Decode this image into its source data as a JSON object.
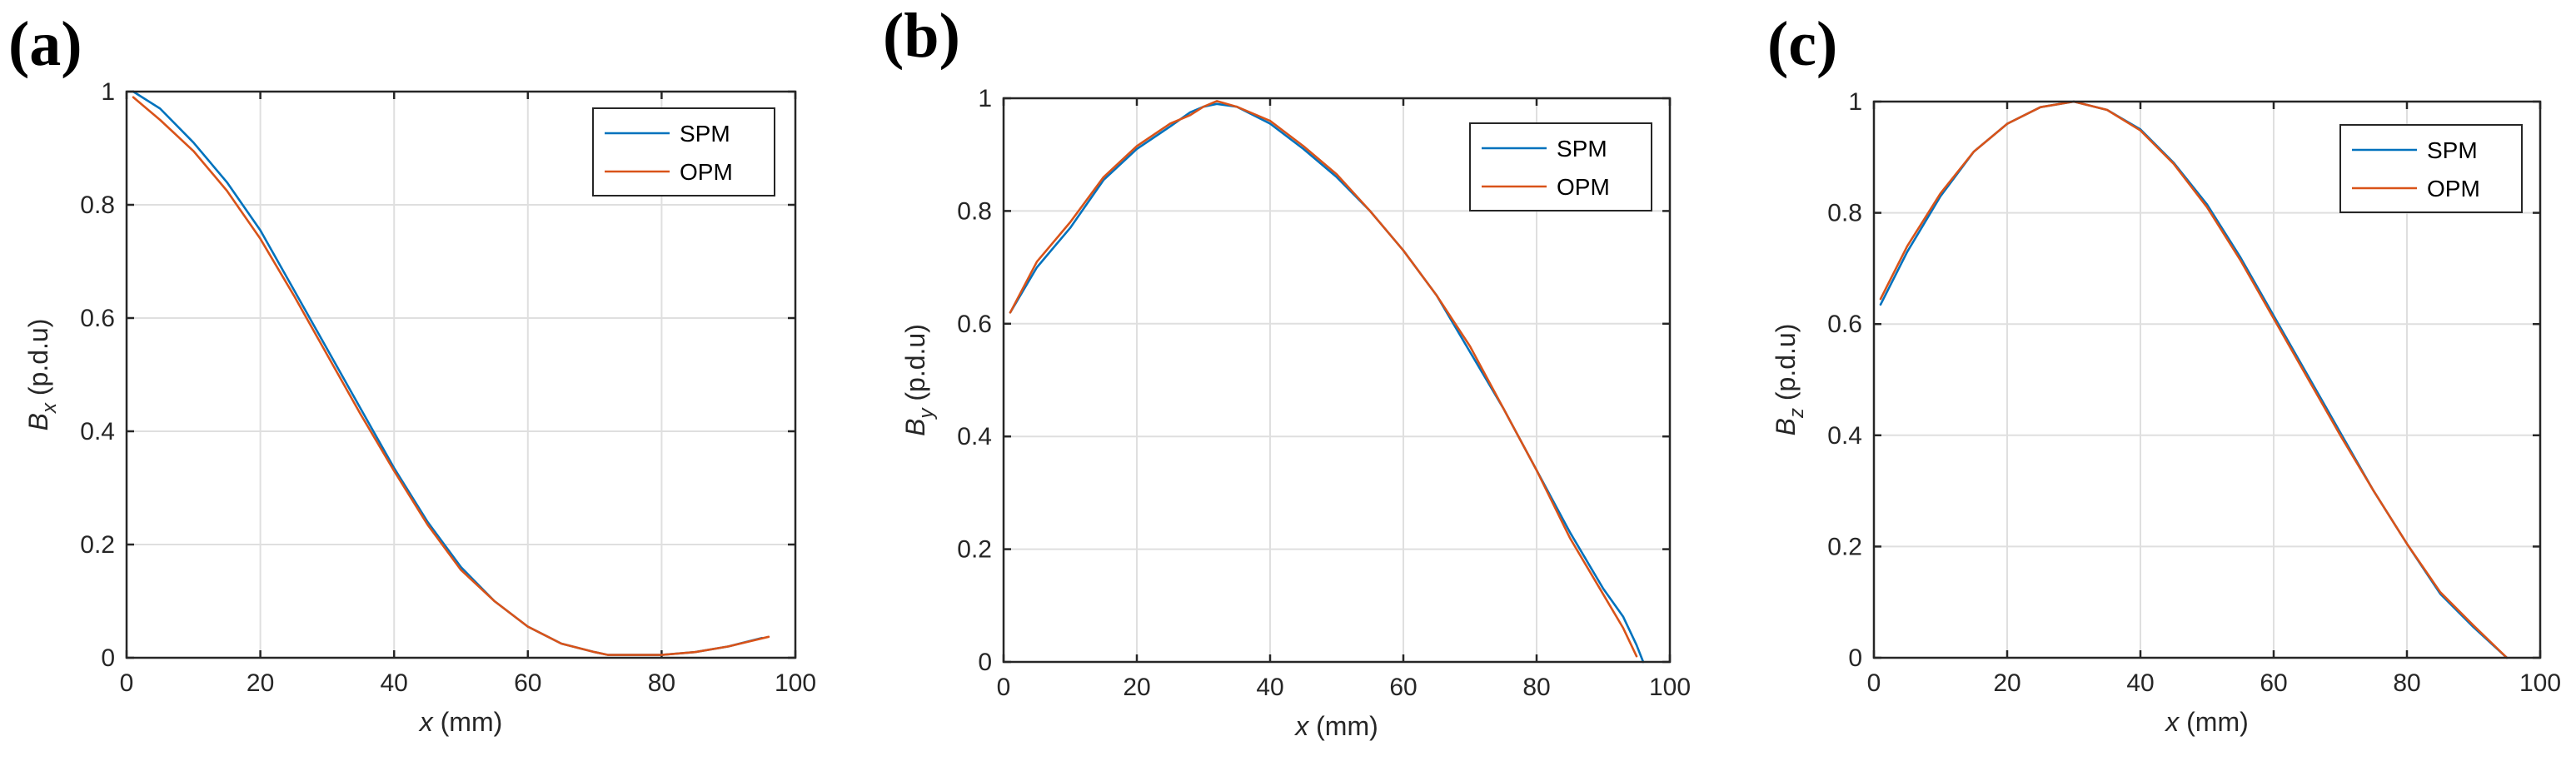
{
  "chart_data": [
    {
      "type": "line",
      "panel_label": "(a)",
      "title": "",
      "xlabel_var": "x",
      "xlabel_unit": " (mm)",
      "ylabel_var": "B",
      "ylabel_sub": "x",
      "ylabel_unit": " (p.d.u)",
      "xlim": [
        0,
        100
      ],
      "ylim": [
        0,
        1
      ],
      "xticks": [
        0,
        20,
        40,
        60,
        80,
        100
      ],
      "yticks": [
        0,
        0.2,
        0.4,
        0.6,
        0.8,
        1
      ],
      "xtick_labels": [
        "0",
        "20",
        "40",
        "60",
        "80",
        "100"
      ],
      "ytick_labels": [
        "0",
        "0.2",
        "0.4",
        "0.6",
        "0.8",
        "1"
      ],
      "grid": true,
      "legend_position": "top-right",
      "series": [
        {
          "name": "SPM",
          "color": "#0072BD",
          "x": [
            1,
            5,
            10,
            15,
            20,
            25,
            30,
            35,
            40,
            45,
            50,
            55,
            60,
            65,
            70,
            72,
            75,
            80,
            85,
            90,
            95
          ],
          "y": [
            1.0,
            0.97,
            0.91,
            0.84,
            0.755,
            0.65,
            0.545,
            0.44,
            0.335,
            0.24,
            0.16,
            0.1,
            0.055,
            0.025,
            0.01,
            0.005,
            0.005,
            0.005,
            0.01,
            0.02,
            0.035
          ]
        },
        {
          "name": "OPM",
          "color": "#D95319",
          "x": [
            1,
            5,
            10,
            15,
            20,
            25,
            30,
            35,
            40,
            45,
            50,
            55,
            60,
            65,
            70,
            72,
            75,
            80,
            85,
            90,
            96
          ],
          "y": [
            0.99,
            0.95,
            0.895,
            0.825,
            0.74,
            0.64,
            0.535,
            0.43,
            0.33,
            0.235,
            0.155,
            0.1,
            0.055,
            0.025,
            0.01,
            0.005,
            0.005,
            0.005,
            0.01,
            0.02,
            0.037
          ]
        }
      ]
    },
    {
      "type": "line",
      "panel_label": "(b)",
      "title": "",
      "xlabel_var": "x",
      "xlabel_unit": " (mm)",
      "ylabel_var": "B",
      "ylabel_sub": "y",
      "ylabel_unit": " (p.d.u)",
      "xlim": [
        0,
        100
      ],
      "ylim": [
        0,
        1
      ],
      "xticks": [
        0,
        20,
        40,
        60,
        80,
        100
      ],
      "yticks": [
        0,
        0.2,
        0.4,
        0.6,
        0.8,
        1
      ],
      "xtick_labels": [
        "0",
        "20",
        "40",
        "60",
        "80",
        "100"
      ],
      "ytick_labels": [
        "0",
        "0.2",
        "0.4",
        "0.6",
        "0.8",
        "1"
      ],
      "grid": true,
      "legend_position": "top-right",
      "series": [
        {
          "name": "SPM",
          "color": "#0072BD",
          "x": [
            1,
            5,
            10,
            15,
            20,
            25,
            28,
            30,
            32,
            35,
            40,
            45,
            50,
            55,
            60,
            65,
            70,
            75,
            80,
            85,
            90,
            93,
            95,
            96
          ],
          "y": [
            0.62,
            0.7,
            0.77,
            0.855,
            0.91,
            0.95,
            0.975,
            0.985,
            0.99,
            0.985,
            0.955,
            0.91,
            0.86,
            0.8,
            0.73,
            0.65,
            0.55,
            0.45,
            0.34,
            0.23,
            0.13,
            0.08,
            0.03,
            0.0
          ]
        },
        {
          "name": "OPM",
          "color": "#D95319",
          "x": [
            1,
            5,
            10,
            15,
            20,
            25,
            28,
            30,
            32,
            35,
            40,
            45,
            50,
            55,
            60,
            65,
            70,
            75,
            80,
            85,
            90,
            93,
            95
          ],
          "y": [
            0.62,
            0.71,
            0.78,
            0.86,
            0.915,
            0.955,
            0.97,
            0.985,
            0.995,
            0.985,
            0.96,
            0.915,
            0.865,
            0.8,
            0.73,
            0.65,
            0.56,
            0.45,
            0.34,
            0.22,
            0.12,
            0.06,
            0.01
          ]
        }
      ]
    },
    {
      "type": "line",
      "panel_label": "(c)",
      "title": "",
      "xlabel_var": "x",
      "xlabel_unit": " (mm)",
      "ylabel_var": "B",
      "ylabel_sub": "z",
      "ylabel_unit": " (p.d.u)",
      "xlim": [
        0,
        100
      ],
      "ylim": [
        0,
        1
      ],
      "xticks": [
        0,
        20,
        40,
        60,
        80,
        100
      ],
      "yticks": [
        0,
        0.2,
        0.4,
        0.6,
        0.8,
        1
      ],
      "xtick_labels": [
        "0",
        "20",
        "40",
        "60",
        "80",
        "100"
      ],
      "ytick_labels": [
        "0",
        "0.2",
        "0.4",
        "0.6",
        "0.8",
        "1"
      ],
      "grid": true,
      "legend_position": "top-right",
      "series": [
        {
          "name": "SPM",
          "color": "#0072BD",
          "x": [
            1,
            5,
            10,
            15,
            20,
            25,
            30,
            35,
            40,
            45,
            50,
            55,
            60,
            65,
            70,
            75,
            80,
            85,
            90,
            95
          ],
          "y": [
            0.635,
            0.73,
            0.83,
            0.91,
            0.96,
            0.99,
            1.0,
            0.985,
            0.95,
            0.89,
            0.815,
            0.72,
            0.615,
            0.51,
            0.405,
            0.3,
            0.205,
            0.115,
            0.055,
            0.0
          ]
        },
        {
          "name": "OPM",
          "color": "#D95319",
          "x": [
            1,
            5,
            10,
            15,
            20,
            25,
            30,
            35,
            40,
            45,
            50,
            55,
            60,
            65,
            70,
            75,
            80,
            85,
            90,
            95
          ],
          "y": [
            0.645,
            0.74,
            0.835,
            0.91,
            0.96,
            0.99,
            1.0,
            0.985,
            0.948,
            0.888,
            0.81,
            0.715,
            0.61,
            0.505,
            0.4,
            0.3,
            0.205,
            0.118,
            0.058,
            0.0
          ]
        }
      ]
    }
  ]
}
